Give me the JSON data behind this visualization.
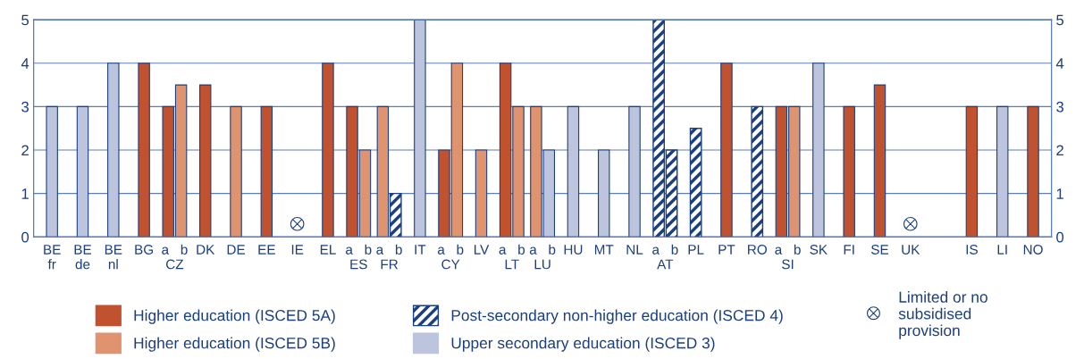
{
  "chart_data": {
    "type": "bar",
    "categories": [
      "BE\nfr",
      "BE\nde",
      "BE\nnl",
      "BG",
      "a   b\nCZ",
      "DK",
      "DE",
      "EE",
      "IE",
      "EL",
      "a   b\nES",
      "a   b\nFR",
      "IT",
      "a   b\nCY",
      "LV",
      "a   b\nLT",
      "a   b\nLU",
      "HU",
      "MT",
      "NL",
      "a   b\nAT",
      "PL",
      "PT",
      "RO",
      "a   b\nSI",
      "SK",
      "FI",
      "SE",
      "UK",
      null,
      "IS",
      "LI",
      "NO"
    ],
    "series": [
      {
        "name": "Higher education (ISCED 5A)",
        "color": "#c0522f",
        "values": [
          null,
          null,
          null,
          4,
          3,
          3.5,
          null,
          3,
          null,
          4,
          3,
          null,
          null,
          2,
          null,
          4,
          null,
          null,
          null,
          null,
          null,
          null,
          4,
          null,
          3,
          null,
          3,
          3.5,
          null,
          null,
          3,
          null,
          3
        ]
      },
      {
        "name": "Higher education (ISCED 5B)",
        "color": "#e0936f",
        "values": [
          null,
          null,
          null,
          null,
          3.5,
          null,
          3,
          null,
          null,
          null,
          2,
          3,
          null,
          4,
          2,
          3,
          3,
          null,
          null,
          null,
          null,
          null,
          null,
          null,
          3,
          null,
          null,
          null,
          null,
          null,
          null,
          null,
          null
        ]
      },
      {
        "name": "Post-secondary non-higher education (ISCED 4)",
        "color": "#1b3f7f",
        "values": [
          null,
          null,
          null,
          null,
          null,
          null,
          null,
          null,
          null,
          null,
          null,
          1,
          null,
          null,
          null,
          null,
          null,
          null,
          null,
          null,
          5,
          2.5,
          null,
          3,
          null,
          null,
          null,
          null,
          null,
          null,
          null,
          null,
          null
        ]
      },
      {
        "color": "#1b3f7f",
        "values": [
          null,
          null,
          null,
          null,
          null,
          null,
          null,
          null,
          null,
          null,
          null,
          null,
          null,
          null,
          null,
          null,
          null,
          null,
          null,
          null,
          2,
          null,
          null,
          null,
          null,
          null,
          null,
          null,
          null,
          null,
          null,
          null,
          null
        ]
      },
      {
        "name": "Upper secondary education (ISCED 3)",
        "color": "#bcc4de",
        "values": [
          3,
          3,
          4,
          null,
          null,
          null,
          null,
          null,
          null,
          null,
          null,
          null,
          5,
          null,
          null,
          null,
          2,
          3,
          2,
          3,
          null,
          null,
          null,
          null,
          null,
          4,
          null,
          null,
          null,
          null,
          null,
          3,
          null
        ]
      },
      {
        "name": "Limited or no\nsubsidised\nprovision",
        "type": "scatter",
        "marker": "cross",
        "color": "#1b3f7f",
        "values": [
          null,
          null,
          null,
          null,
          null,
          null,
          null,
          null,
          0.3,
          null,
          null,
          null,
          null,
          null,
          null,
          null,
          null,
          null,
          null,
          null,
          null,
          null,
          null,
          null,
          null,
          null,
          null,
          null,
          0.3,
          null,
          null,
          null,
          null
        ]
      }
    ],
    "ylim": [
      0,
      5
    ],
    "yticks": [
      0,
      1,
      2,
      3,
      4,
      5
    ],
    "y2lim": [
      0,
      5
    ],
    "y2ticks": [
      0,
      1,
      2,
      3,
      4,
      5
    ],
    "grid": "y",
    "legend": "bottom"
  }
}
